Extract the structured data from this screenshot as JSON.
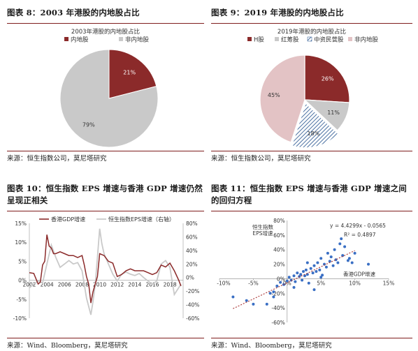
{
  "panels": {
    "fig8": {
      "title": "图表 8：2003 年港股的内地股占比",
      "source": "来源：恒生指数公司，莫尼塔研究"
    },
    "fig9": {
      "title": "图表 9：2019 年港股的内地股占比",
      "source": "来源：恒生指数公司，莫尼塔研究"
    },
    "fig10": {
      "title_line1": "图表 10：恒生指数 EPS 增速与香港 GDP 增速仍然",
      "title_line2": "呈现正相关",
      "source": "来源：Wind、Bloomberg，莫尼塔研究"
    },
    "fig11": {
      "title_line1": "图表 11：恒生指数 EPS 增速与香港 GDP 增速之间",
      "title_line2": "的回归方程",
      "source": "来源：Wind、Bloomberg，莫尼塔研究"
    }
  },
  "colors": {
    "accent": "#8b2a2a",
    "grey": "#c9c9c9",
    "pink": "#e3c3c5",
    "blue": "#1f4e8c",
    "scatter": "#3a6fc4",
    "trend": "#a93232"
  },
  "chart_data": [
    {
      "type": "pie",
      "title": "2003年港股的内地股占比",
      "legend": [
        "内地股",
        "非内地股"
      ],
      "slices": [
        {
          "name": "内地股",
          "value": 21,
          "label": "21%"
        },
        {
          "name": "非内地股",
          "value": 79,
          "label": "79%"
        }
      ]
    },
    {
      "type": "pie",
      "title": "2019年港股的内地股占比",
      "legend": [
        "H股",
        "红筹股",
        "中资民营股",
        "非内地股"
      ],
      "slices": [
        {
          "name": "H股",
          "value": 26,
          "label": "26%"
        },
        {
          "name": "红筹股",
          "value": 11,
          "label": "11%"
        },
        {
          "name": "中资民营股",
          "value": 18,
          "label": "18%"
        },
        {
          "name": "非内地股",
          "value": 45,
          "label": "45%"
        }
      ]
    },
    {
      "type": "line",
      "legend": [
        "香港GDP增速",
        "恒生指数EPS增速（右轴）"
      ],
      "x_ticks": [
        "2002",
        "2004",
        "2006",
        "2008",
        "2010",
        "2012",
        "2014",
        "2016",
        "2018"
      ],
      "y_left_ticks": [
        "15%",
        "10%",
        "5%",
        "0%",
        "-5%",
        "-10%"
      ],
      "y_right_ticks": [
        "80%",
        "60%",
        "40%",
        "20%",
        "0%",
        "-20%",
        "-40%",
        "-60%"
      ],
      "y_left_range": [
        -10,
        15
      ],
      "y_right_range": [
        -60,
        80
      ],
      "x_range": [
        2002,
        2019.5
      ],
      "series": [
        {
          "name": "香港GDP增速",
          "axis": "left",
          "x": [
            2002,
            2002.5,
            2003,
            2003.25,
            2003.5,
            2003.75,
            2004,
            2004.25,
            2004.5,
            2004.75,
            2005,
            2005.5,
            2006,
            2006.5,
            2007,
            2007.5,
            2008,
            2008.25,
            2008.5,
            2008.75,
            2009,
            2009.25,
            2009.5,
            2009.75,
            2010,
            2010.5,
            2011,
            2011.5,
            2012,
            2012.5,
            2013,
            2013.5,
            2014,
            2014.5,
            2015,
            2015.5,
            2016,
            2016.5,
            2017,
            2017.5,
            2018,
            2018.5,
            2019,
            2019.25
          ],
          "y": [
            2,
            1.8,
            -1,
            -0.5,
            4,
            5,
            12,
            9,
            8.5,
            7,
            7,
            7.5,
            7,
            6.5,
            6.5,
            6,
            6.5,
            4,
            1,
            -1,
            -6,
            -3,
            -1,
            1,
            7,
            6.5,
            5,
            4.5,
            1,
            1.5,
            2.5,
            3,
            2.5,
            2.5,
            2.5,
            2,
            1.5,
            2,
            4,
            3.5,
            4.5,
            2.5,
            0,
            -1.5
          ]
        },
        {
          "name": "恒生指数EPS增速（右轴）",
          "axis": "right",
          "x": [
            2002,
            2002.5,
            2003,
            2003.5,
            2004,
            2004.5,
            2005,
            2005.5,
            2006,
            2006.5,
            2007,
            2007.5,
            2008,
            2008.5,
            2009,
            2009.25,
            2009.5,
            2009.75,
            2010,
            2010.25,
            2010.5,
            2011,
            2011.5,
            2012,
            2012.5,
            2013,
            2013.5,
            2014,
            2014.5,
            2015,
            2015.5,
            2016,
            2016.5,
            2017,
            2017.5,
            2018,
            2018.5,
            2019,
            2019.25
          ],
          "y": [
            -15,
            -10,
            -5,
            -8,
            20,
            48,
            30,
            15,
            20,
            25,
            20,
            22,
            10,
            -30,
            -55,
            -35,
            -10,
            30,
            72,
            50,
            35,
            20,
            5,
            -5,
            5,
            8,
            5,
            3,
            6,
            0,
            -5,
            -10,
            -5,
            20,
            25,
            15,
            -25,
            -15,
            -10
          ]
        }
      ]
    },
    {
      "type": "scatter",
      "ylabel": "恒生指数EPS增速",
      "xlabel": "香港GDP增速",
      "annotation": [
        "y = 4.4299x - 0.0565",
        "R² = 0.4897"
      ],
      "x_ticks": [
        "-10%",
        "-5%",
        "0%",
        "5%",
        "10%",
        "15%"
      ],
      "y_ticks": [
        "80%",
        "60%",
        "40%",
        "20%",
        "0%",
        "-20%",
        "-40%",
        "-60%"
      ],
      "x_range": [
        -10,
        15
      ],
      "y_range": [
        -60,
        80
      ],
      "trend": {
        "slope": 4.4299,
        "intercept": -5.65
      },
      "points": [
        [
          -8,
          -25
        ],
        [
          -6,
          -30
        ],
        [
          -5,
          -35
        ],
        [
          -3,
          -35
        ],
        [
          -2.5,
          -20
        ],
        [
          -2,
          -25
        ],
        [
          -1.5,
          -10
        ],
        [
          -1,
          -5
        ],
        [
          -0.5,
          -8
        ],
        [
          0,
          -3
        ],
        [
          0.3,
          2
        ],
        [
          0.6,
          -2
        ],
        [
          1,
          4
        ],
        [
          1.2,
          -4
        ],
        [
          1.5,
          8
        ],
        [
          1.8,
          3
        ],
        [
          2,
          6
        ],
        [
          2.2,
          -2
        ],
        [
          2.4,
          10
        ],
        [
          2.6,
          4
        ],
        [
          2.8,
          12
        ],
        [
          3,
          6
        ],
        [
          3.2,
          -6
        ],
        [
          3.5,
          14
        ],
        [
          3.8,
          8
        ],
        [
          4,
          18
        ],
        [
          4.3,
          10
        ],
        [
          4.5,
          22
        ],
        [
          4.8,
          12
        ],
        [
          5,
          28
        ],
        [
          5.2,
          5
        ],
        [
          5.5,
          20
        ],
        [
          5.8,
          16
        ],
        [
          6,
          35
        ],
        [
          6.3,
          24
        ],
        [
          6.5,
          30
        ],
        [
          6.8,
          18
        ],
        [
          7,
          40
        ],
        [
          7.2,
          26
        ],
        [
          7.5,
          22
        ],
        [
          7.8,
          48
        ],
        [
          8,
          55
        ],
        [
          8.2,
          32
        ],
        [
          8.5,
          44
        ],
        [
          9,
          25
        ],
        [
          9.2,
          28
        ],
        [
          9.6,
          22
        ],
        [
          10,
          35
        ],
        [
          12,
          20
        ],
        [
          -2,
          -18
        ],
        [
          1,
          -12
        ],
        [
          4,
          -15
        ],
        [
          5,
          2
        ],
        [
          3,
          22
        ]
      ]
    }
  ]
}
